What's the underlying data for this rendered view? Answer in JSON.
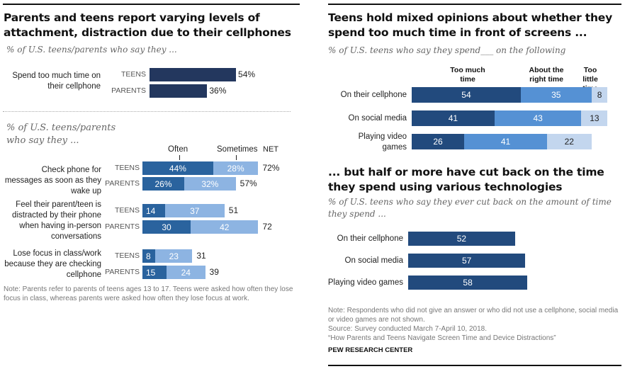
{
  "left": {
    "title": "Parents and teens report varying levels of attachment, distraction due to their cellphones",
    "subtitle1": "% of U.S. teens/parents who say they ...",
    "subtitle2": "% of U.S. teens/parents who say they ...",
    "note": "Note: Parents refer to parents of teens ages 13 to 17. Teens were asked how often they lose focus in class, whereas parents were asked how often they lose focus at work."
  },
  "right": {
    "title1": "Teens hold mixed opinions about whether they spend too much time in front of screens ...",
    "subtitle1": "% of U.S. teens who say they spend___ on the following",
    "title2": "... but half or more have cut back on the time they spend using various technologies",
    "subtitle2": "% of U.S. teens who say they ever cut back on the amount of time they spend ...",
    "note": "Note: Respondents who did not give an answer or who did not use a cellphone, social media or video games are not shown.",
    "source": "Source: Survey conducted March 7-April 10, 2018.",
    "report": "“How Parents and Teens Navigate Screen Time and Device Distractions”",
    "brand": "PEW RESEARCH CENTER"
  },
  "colors": {
    "navy": "#23375e",
    "often": "#2a639e",
    "sometimes": "#8db4e2",
    "too_much": "#224a7d",
    "right_time": "#5591d4",
    "too_little": "#c3d6ee",
    "cut_back": "#224a7d"
  },
  "chart_data": [
    {
      "type": "bar",
      "orientation": "horizontal",
      "title": "Spend too much time on their cellphone",
      "categories": [
        "TEENS",
        "PARENTS"
      ],
      "values": [
        54,
        36
      ],
      "value_labels": [
        "54%",
        "36%"
      ],
      "xlim": [
        0,
        100
      ]
    },
    {
      "type": "bar",
      "orientation": "horizontal",
      "stacked": true,
      "legend": [
        "Often",
        "Sometimes",
        "NET"
      ],
      "groups": [
        {
          "label": "Check phone for messages as soon as they wake up",
          "rows": [
            {
              "name": "TEENS",
              "often": 44,
              "sometimes": 28,
              "net": 72,
              "labels": [
                "44%",
                "28%",
                "72%"
              ]
            },
            {
              "name": "PARENTS",
              "often": 26,
              "sometimes": 32,
              "net": 57,
              "labels": [
                "26%",
                "32%",
                "57%"
              ]
            }
          ]
        },
        {
          "label": "Feel their parent/teen is distracted by their phone when having in-person conversations",
          "rows": [
            {
              "name": "TEENS",
              "often": 14,
              "sometimes": 37,
              "net": 51,
              "labels": [
                "14",
                "37",
                "51"
              ]
            },
            {
              "name": "PARENTS",
              "often": 30,
              "sometimes": 42,
              "net": 72,
              "labels": [
                "30",
                "42",
                "72"
              ]
            }
          ]
        },
        {
          "label": "Lose focus in class/work because they are checking cellphone",
          "rows": [
            {
              "name": "TEENS",
              "often": 8,
              "sometimes": 23,
              "net": 31,
              "labels": [
                "8",
                "23",
                "31"
              ]
            },
            {
              "name": "PARENTS",
              "often": 15,
              "sometimes": 24,
              "net": 39,
              "labels": [
                "15",
                "24",
                "39"
              ]
            }
          ]
        }
      ],
      "xlim": [
        0,
        100
      ]
    },
    {
      "type": "bar",
      "orientation": "horizontal",
      "stacked": true,
      "title": "Teens hold mixed opinions about whether they spend too much time in front of screens ...",
      "categories": [
        "On their cellphone",
        "On social media",
        "Playing video games"
      ],
      "series": [
        {
          "name": "Too much time",
          "values": [
            54,
            41,
            26
          ]
        },
        {
          "name": "About the right time",
          "values": [
            35,
            43,
            41
          ]
        },
        {
          "name": "Too little time",
          "values": [
            8,
            13,
            22
          ]
        }
      ],
      "xlim": [
        0,
        100
      ]
    },
    {
      "type": "bar",
      "orientation": "horizontal",
      "title": "... but half or more have cut back on the time they spend using various technologies",
      "categories": [
        "On their cellphone",
        "On social media",
        "Playing video games"
      ],
      "values": [
        52,
        57,
        58
      ],
      "xlim": [
        0,
        100
      ]
    }
  ]
}
